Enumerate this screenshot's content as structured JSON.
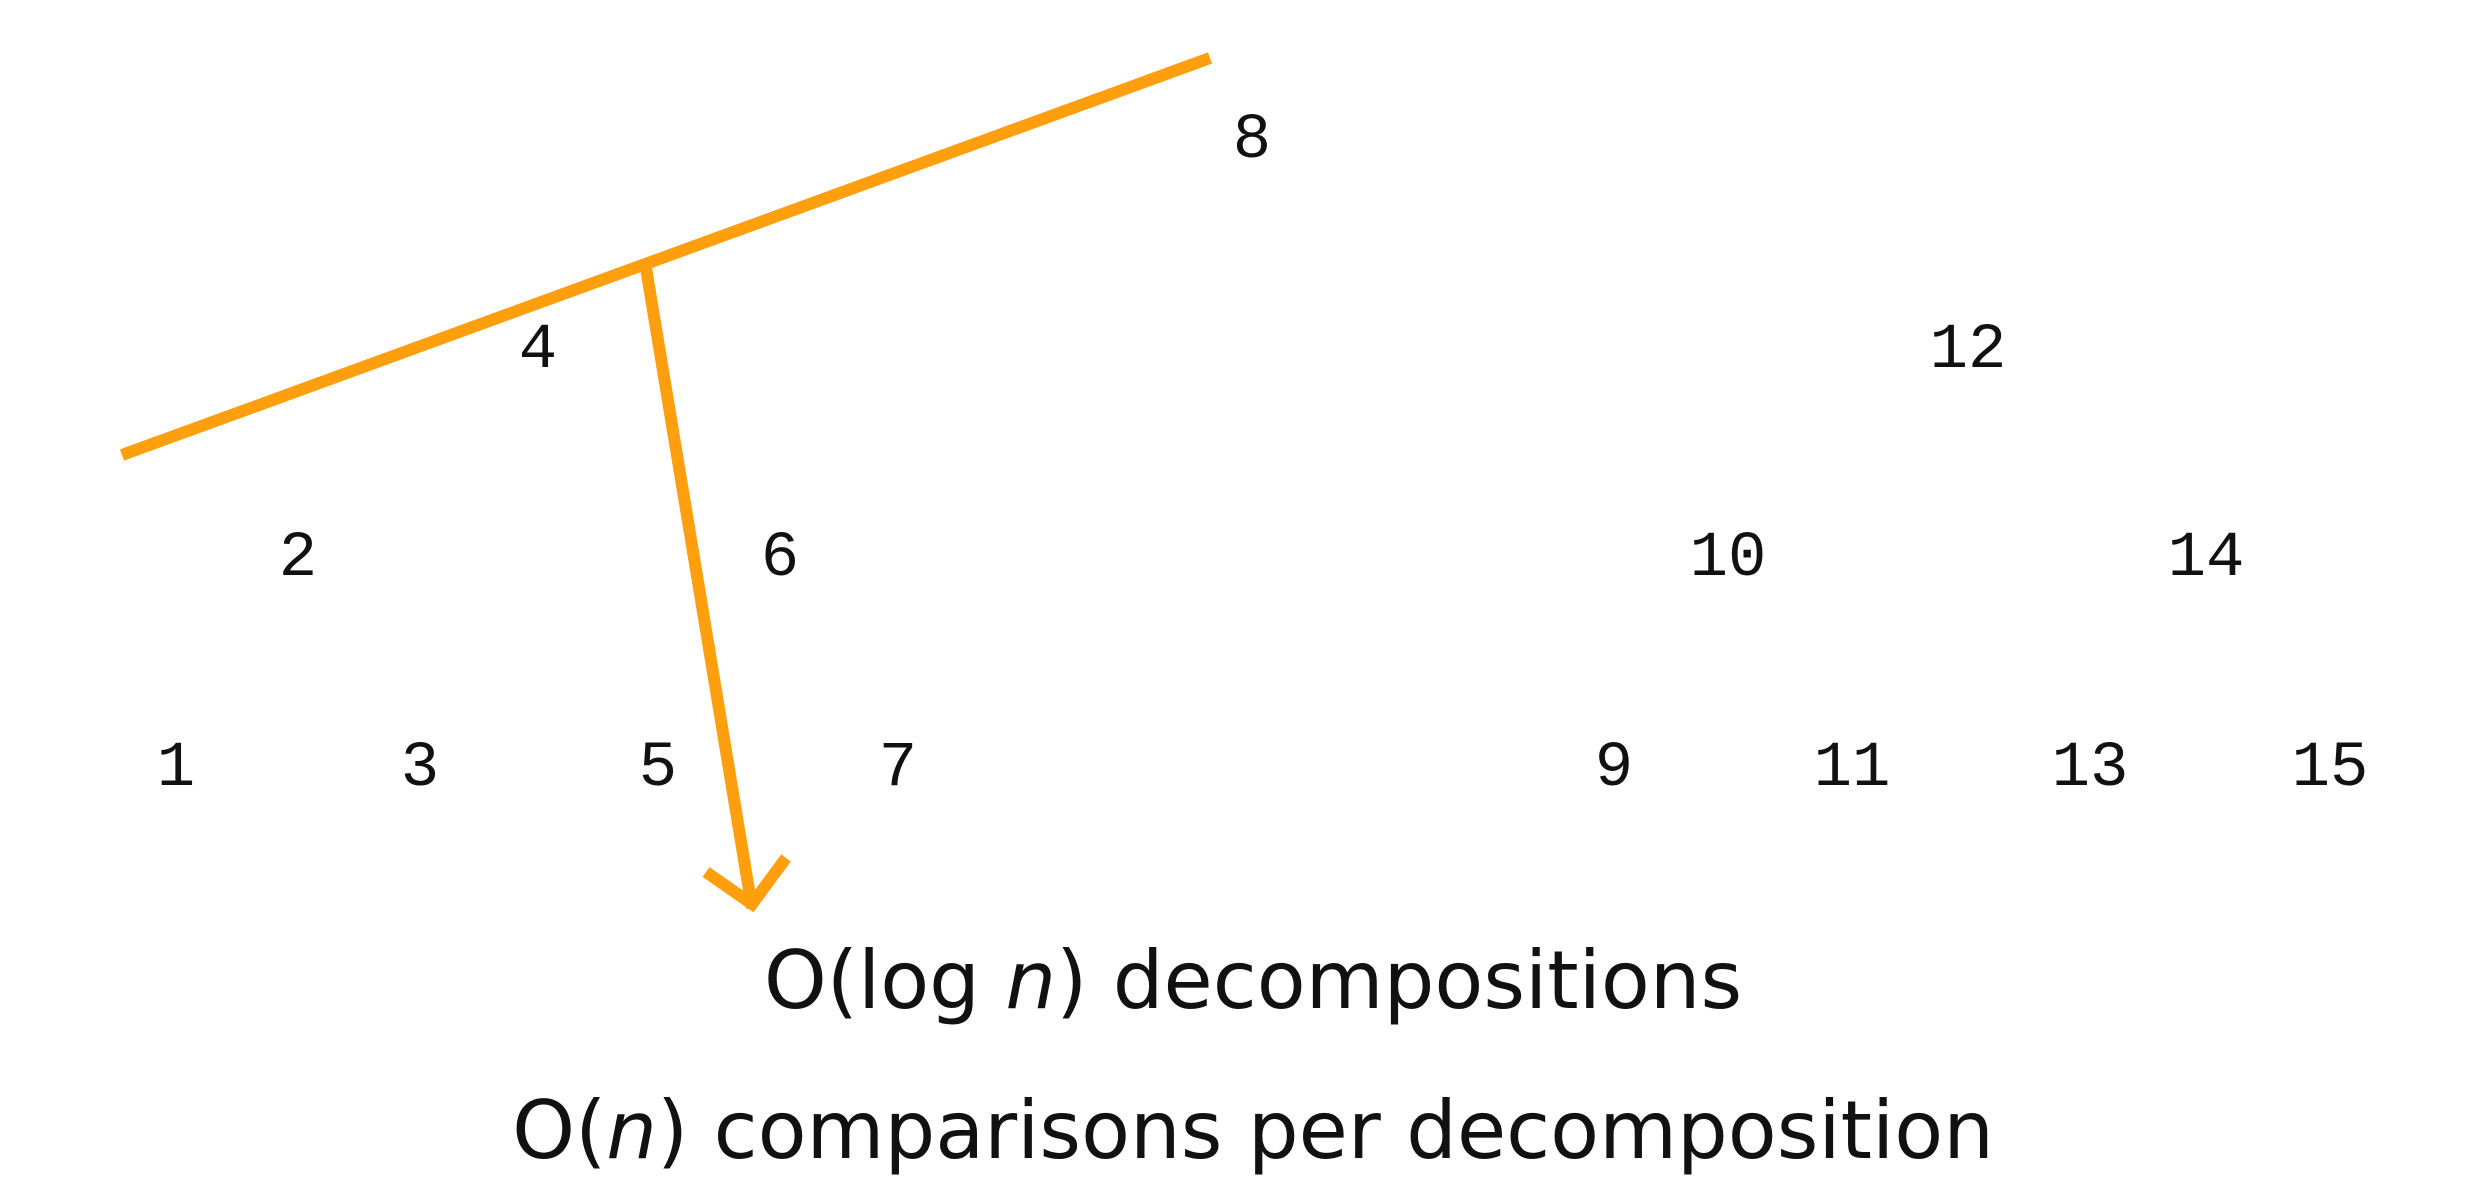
{
  "tree": {
    "nodes": [
      {
        "id": "n8",
        "label": "8"
      },
      {
        "id": "n4",
        "label": "4"
      },
      {
        "id": "n12",
        "label": "12"
      },
      {
        "id": "n2",
        "label": "2"
      },
      {
        "id": "n6",
        "label": "6"
      },
      {
        "id": "n10",
        "label": "10"
      },
      {
        "id": "n14",
        "label": "14"
      },
      {
        "id": "n1",
        "label": "1"
      },
      {
        "id": "n3",
        "label": "3"
      },
      {
        "id": "n5",
        "label": "5"
      },
      {
        "id": "n7",
        "label": "7"
      },
      {
        "id": "n9",
        "label": "9"
      },
      {
        "id": "n11",
        "label": "11"
      },
      {
        "id": "n13",
        "label": "13"
      },
      {
        "id": "n15",
        "label": "15"
      }
    ]
  },
  "annotation": {
    "color": "#FF9F0E"
  },
  "captions": {
    "line1": {
      "pre": "O(log ",
      "ital": "n",
      "post": ") decompositions"
    },
    "line2": {
      "pre": "O(",
      "ital": "n",
      "post": ") comparisons per decomposition"
    }
  }
}
